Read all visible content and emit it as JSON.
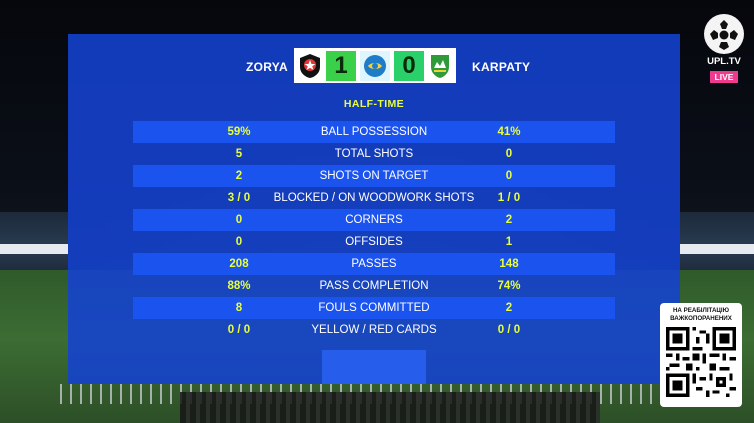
{
  "match": {
    "home_team": "ZORYA",
    "away_team": "KARPATY",
    "home_score": "1",
    "away_score": "0",
    "period": "HALF-TIME"
  },
  "stats": [
    {
      "home": "59%",
      "label": "BALL POSSESSION",
      "away": "41%"
    },
    {
      "home": "5",
      "label": "TOTAL SHOTS",
      "away": "0"
    },
    {
      "home": "2",
      "label": "SHOTS ON TARGET",
      "away": "0"
    },
    {
      "home": "3 / 0",
      "label": "BLOCKED / ON WOODWORK SHOTS",
      "away": "1 / 0"
    },
    {
      "home": "0",
      "label": "CORNERS",
      "away": "2"
    },
    {
      "home": "0",
      "label": "OFFSIDES",
      "away": "1"
    },
    {
      "home": "208",
      "label": "PASSES",
      "away": "148"
    },
    {
      "home": "88%",
      "label": "PASS COMPLETION",
      "away": "74%"
    },
    {
      "home": "8",
      "label": "FOULS COMMITTED",
      "away": "2"
    },
    {
      "home": "0 / 0",
      "label": "YELLOW / RED CARDS",
      "away": "0 / 0"
    }
  ],
  "broadcaster": {
    "name": "UPL.TV",
    "live_label": "LIVE",
    "logo_icon": "upl-ball-logo-icon"
  },
  "qr_promo": {
    "caption_line1": "НА РЕАБІЛІТАЦІЮ",
    "caption_line2": "ВАЖКОПОРАНЕНИХ",
    "icon": "qr-code-icon"
  },
  "colors": {
    "panel_blue": "#1442d2",
    "row_shade": "#1b53ee",
    "accent_yellow": "#e9ff3a",
    "score_green": "#3ad04a",
    "live_pink": "#ef3b8f"
  }
}
